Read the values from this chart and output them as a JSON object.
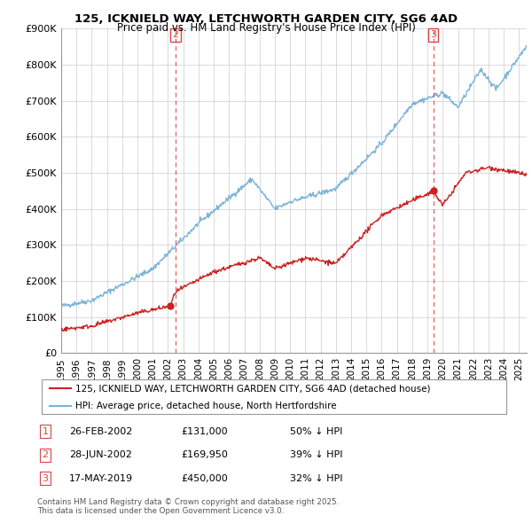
{
  "title1": "125, ICKNIELD WAY, LETCHWORTH GARDEN CITY, SG6 4AD",
  "title2": "Price paid vs. HM Land Registry's House Price Index (HPI)",
  "ylim": [
    0,
    900000
  ],
  "yticks": [
    0,
    100000,
    200000,
    300000,
    400000,
    500000,
    600000,
    700000,
    800000,
    900000
  ],
  "ytick_labels": [
    "£0",
    "£100K",
    "£200K",
    "£300K",
    "£400K",
    "£500K",
    "£600K",
    "£700K",
    "£800K",
    "£900K"
  ],
  "xlim": [
    1995,
    2025.5
  ],
  "xtick_years": [
    1995,
    1996,
    1997,
    1998,
    1999,
    2000,
    2001,
    2002,
    2003,
    2004,
    2005,
    2006,
    2007,
    2008,
    2009,
    2010,
    2011,
    2012,
    2013,
    2014,
    2015,
    2016,
    2017,
    2018,
    2019,
    2020,
    2021,
    2022,
    2023,
    2024,
    2025
  ],
  "legend_entries": [
    "125, ICKNIELD WAY, LETCHWORTH GARDEN CITY, SG6 4AD (detached house)",
    "HPI: Average price, detached house, North Hertfordshire"
  ],
  "vlines": [
    {
      "num": 2,
      "year_x": 2002.49
    },
    {
      "num": 3,
      "year_x": 2019.38
    }
  ],
  "markers": [
    {
      "year_x": 2002.15,
      "price": 131000
    },
    {
      "year_x": 2019.38,
      "price": 450000
    }
  ],
  "transactions": [
    {
      "num": 1,
      "date": "26-FEB-2002",
      "price": "131,000",
      "pct": "50% ↓ HPI"
    },
    {
      "num": 2,
      "date": "28-JUN-2002",
      "price": "169,950",
      "pct": "39% ↓ HPI"
    },
    {
      "num": 3,
      "date": "17-MAY-2019",
      "price": "450,000",
      "pct": "32% ↓ HPI"
    }
  ],
  "footer1": "Contains HM Land Registry data © Crown copyright and database right 2025.",
  "footer2": "This data is licensed under the Open Government Licence v3.0.",
  "hpi_color": "#7ab4d8",
  "price_color": "#cc2222",
  "vline_color": "#dd4444",
  "background_color": "#ffffff",
  "grid_color": "#cccccc"
}
